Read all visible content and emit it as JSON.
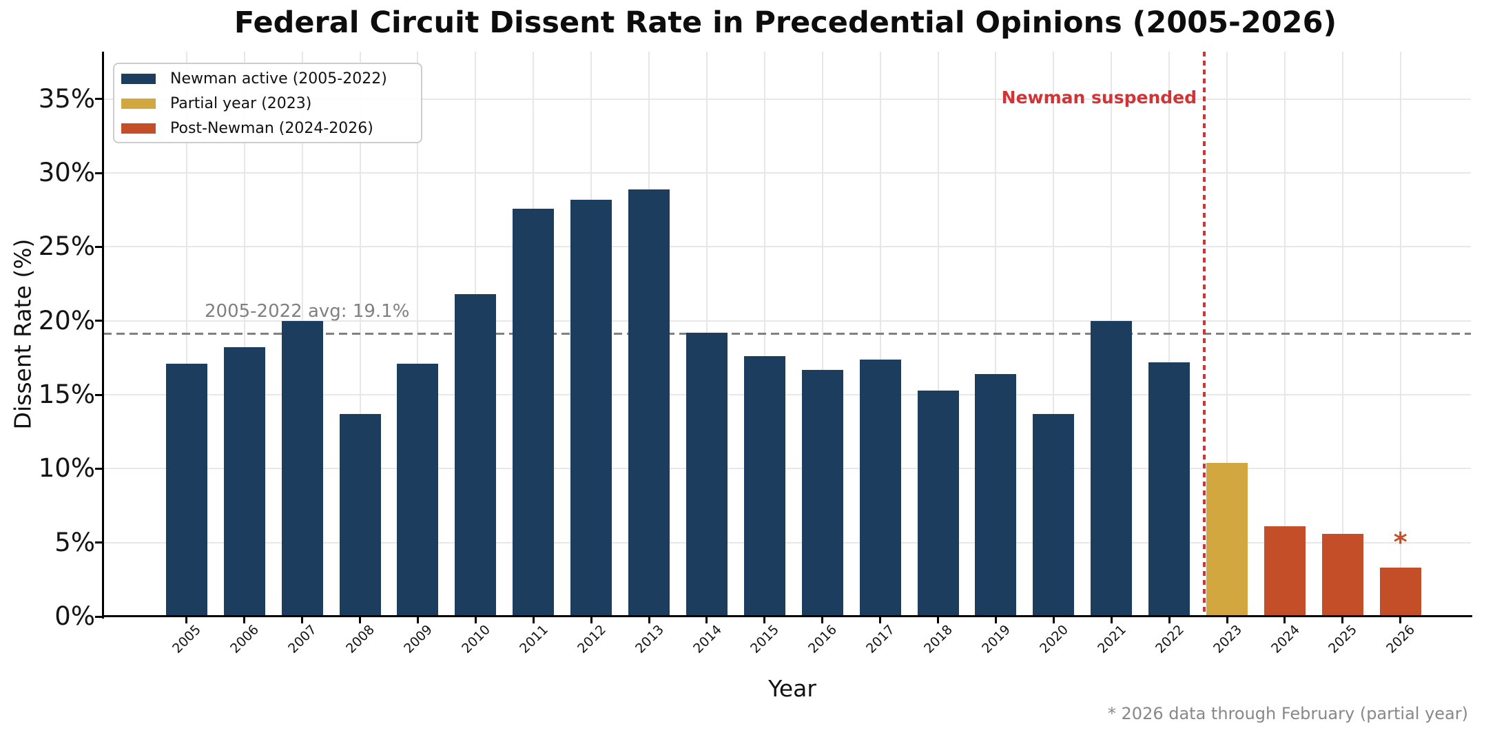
{
  "figure": {
    "footnote": "* 2026 data through February (partial year)"
  },
  "chart_data": {
    "type": "bar",
    "title": "Federal Circuit Dissent Rate in Precedential Opinions (2005-2026)",
    "xlabel": "Year",
    "ylabel": "Dissent Rate (%)",
    "categories": [
      "2005",
      "2006",
      "2007",
      "2008",
      "2009",
      "2010",
      "2011",
      "2012",
      "2013",
      "2014",
      "2015",
      "2016",
      "2017",
      "2018",
      "2019",
      "2020",
      "2021",
      "2022",
      "2023",
      "2024",
      "2025",
      "2026"
    ],
    "values": [
      17.1,
      18.2,
      20.0,
      13.7,
      17.1,
      21.8,
      27.6,
      28.2,
      28.9,
      19.2,
      17.6,
      16.7,
      17.4,
      15.3,
      16.4,
      13.7,
      20.0,
      17.2,
      10.4,
      6.1,
      5.6,
      3.3
    ],
    "groups": [
      "newman_active",
      "newman_active",
      "newman_active",
      "newman_active",
      "newman_active",
      "newman_active",
      "newman_active",
      "newman_active",
      "newman_active",
      "newman_active",
      "newman_active",
      "newman_active",
      "newman_active",
      "newman_active",
      "newman_active",
      "newman_active",
      "newman_active",
      "newman_active",
      "partial_year",
      "post_newman",
      "post_newman",
      "post_newman"
    ],
    "yticks": [
      0,
      5,
      10,
      15,
      20,
      25,
      30,
      35
    ],
    "ytick_labels": [
      "0%",
      "5%",
      "10%",
      "15%",
      "20%",
      "25%",
      "30%",
      "35%"
    ],
    "ylim": [
      0,
      38.2
    ],
    "grid": true,
    "legend_position": "upper left",
    "legend": [
      {
        "label": "Newman active (2005-2022)",
        "color_key": "newman_active"
      },
      {
        "label": "Partial year (2023)",
        "color_key": "partial_year"
      },
      {
        "label": "Post-Newman (2024-2026)",
        "color_key": "post_newman"
      }
    ],
    "annotations": {
      "avg_line": {
        "y": 19.1,
        "label": "2005-2022 avg: 19.1%",
        "style": "dashed",
        "color": "#808080"
      },
      "suspension_line": {
        "between_categories": [
          "2022",
          "2023"
        ],
        "label": "Newman suspended",
        "style": "dotted",
        "color": "#d23334"
      },
      "asterisk": {
        "symbol": "*",
        "category": "2026",
        "y_percent": 4.9,
        "color": "#c44e27"
      }
    },
    "colors": {
      "newman_active": "#1c3d5e",
      "partial_year": "#d2a73f",
      "post_newman": "#c44e27",
      "grid": "#e7e7e7",
      "axis": "#000000",
      "tick_label": "#141414",
      "footnote": "#888888"
    }
  }
}
